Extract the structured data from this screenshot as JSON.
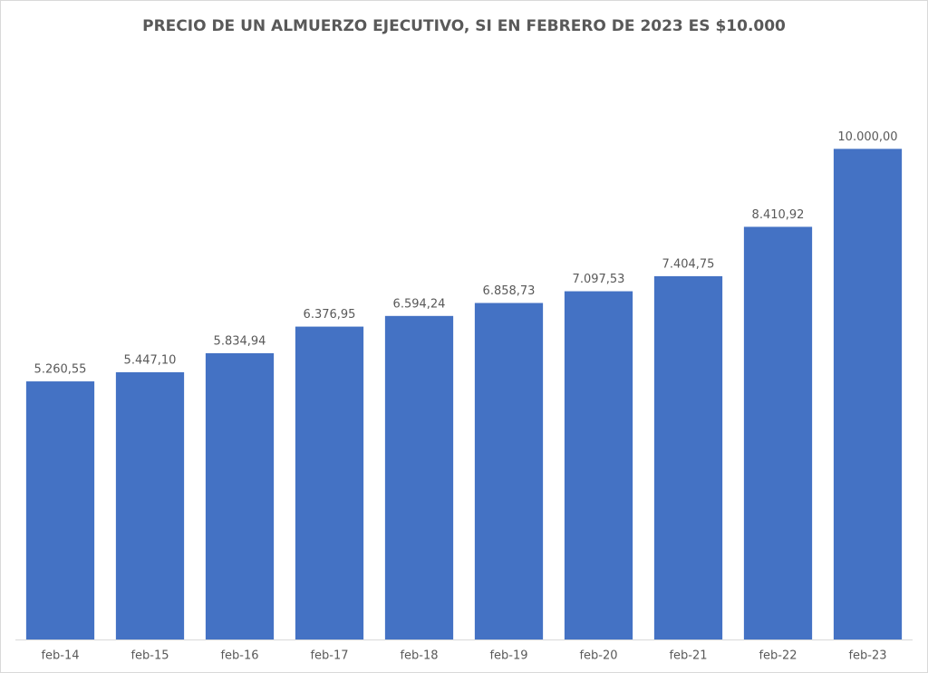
{
  "chart_data": {
    "type": "bar",
    "title": "PRECIO DE UN ALMUERZO EJECUTIVO, SI EN FEBRERO DE 2023 ES $10.000",
    "categories": [
      "feb-14",
      "feb-15",
      "feb-16",
      "feb-17",
      "feb-18",
      "feb-19",
      "feb-20",
      "feb-21",
      "feb-22",
      "feb-23"
    ],
    "values": [
      5260.55,
      5447.1,
      5834.94,
      6376.95,
      6594.24,
      6858.73,
      7097.53,
      7404.75,
      8410.92,
      10000.0
    ],
    "value_labels": [
      "5.260,55",
      "5.447,10",
      "5.834,94",
      "6.376,95",
      "6.594,24",
      "6.858,73",
      "7.097,53",
      "7.404,75",
      "8.410,92",
      "10.000,00"
    ],
    "color": "#4472c4",
    "ylim": [
      0,
      12000
    ]
  }
}
